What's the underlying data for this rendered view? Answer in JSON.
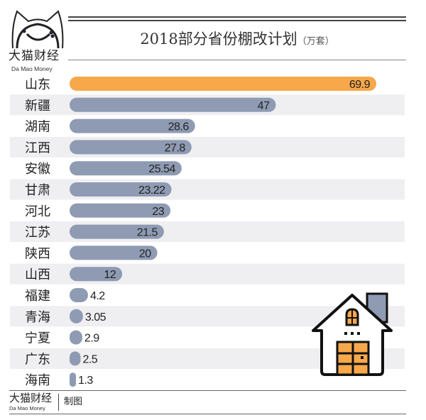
{
  "header": {
    "logo_cn": "大猫财经",
    "logo_en": "Da Mao Money",
    "title": "2018部分省份棚改计划",
    "unit": "（万套）"
  },
  "footer": {
    "logo_cn": "大猫财经",
    "logo_en": "Da Mao Money",
    "credit": "制图"
  },
  "colors": {
    "highlight": "#f6a84a",
    "bar": "#8e9bb3",
    "row_shade": "#efeff2"
  },
  "chart_data": {
    "type": "bar",
    "orientation": "horizontal",
    "title": "2018部分省份棚改计划",
    "unit": "（万套）",
    "categories": [
      "山东",
      "新疆",
      "湖南",
      "江西",
      "安徽",
      "甘肃",
      "河北",
      "江苏",
      "陕西",
      "山西",
      "福建",
      "青海",
      "宁夏",
      "广东",
      "海南"
    ],
    "values": [
      69.9,
      47,
      28.6,
      27.8,
      25.54,
      23.22,
      23,
      21.5,
      20,
      12,
      4.2,
      3.05,
      2.9,
      2.5,
      1.3
    ],
    "labels": [
      "69.9",
      "47",
      "28.6",
      "27.8",
      "25.54",
      "23.22",
      "23",
      "21.5",
      "20",
      "12",
      "4.2",
      "3.05",
      "2.9",
      "2.5",
      "1.3"
    ],
    "highlight_category": "山东",
    "grid": false,
    "legend": "none"
  }
}
